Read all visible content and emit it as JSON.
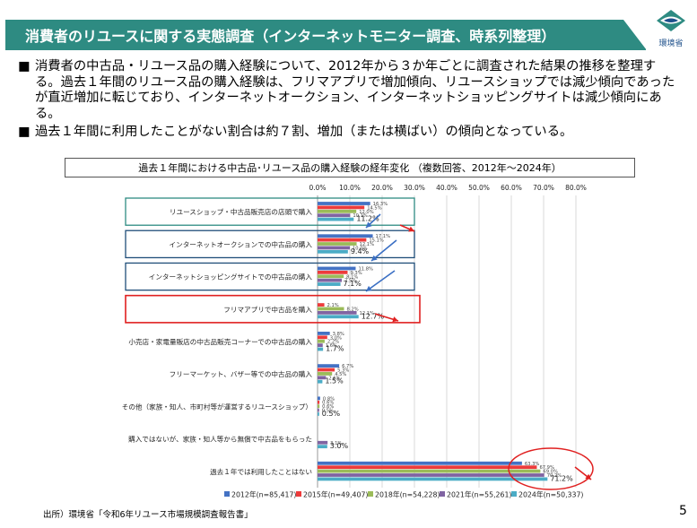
{
  "header": {
    "title": "消費者のリユースに関する実態調査（インターネットモニター調査、時系列整理）",
    "logo_label": "環境省"
  },
  "bullets": [
    {
      "mark": "■",
      "text": "消費者の中古品・リユース品の購入経験について、2012年から３か年ごとに調査された結果の推移を整理する。過去１年間のリユース品の購入経験は、フリマアプリで増加傾向、リユースショップでは減少傾向であったが直近増加に転じており、インターネットオークション、インターネットショッピングサイトは減少傾向にある。"
    },
    {
      "mark": "■",
      "text": "過去１年間に利用したことがない割合は約７割、増加（または横ばい）の傾向となっている。"
    }
  ],
  "chart_title": "過去１年間における中古品･リユース品の購入経験の経年変化 （複数回答、2012年～2024年）",
  "chart_data": {
    "type": "bar",
    "orientation": "horizontal",
    "xlim": [
      0,
      80
    ],
    "ticks": [
      "0.0%",
      "10.0%",
      "20.0%",
      "30.0%",
      "40.0%",
      "50.0%",
      "60.0%",
      "70.0%",
      "80.0%"
    ],
    "categories": [
      "リユースショップ・中古品販売店の店頭で購入",
      "インターネットオークションでの中古品の購入",
      "インターネットショッピングサイトでの中古品の購入",
      "フリマアプリで中古品を購入",
      "小売店・家電量販店の中古品販売コーナーでの中古品の購入",
      "フリーマーケット、バザー等での中古品の購入",
      "その他（家族・知人、市町村等が運営するリユースショップ）",
      "購入ではないが、家族・知人等から無償で中古品をもらった",
      "過去１年では利用したことはない"
    ],
    "series": [
      {
        "name": "2012年(n=85,417)",
        "color": "#4472c4",
        "values": [
          16.3,
          17.1,
          11.8,
          null,
          3.8,
          6.7,
          0.8,
          null,
          63.3
        ]
      },
      {
        "name": "2015年(n=49,407)",
        "color": "#ed3b3b",
        "values": [
          14.5,
          15.1,
          9.3,
          2.1,
          3.0,
          5.3,
          0.6,
          null,
          67.9
        ]
      },
      {
        "name": "2018年(n=54,228)",
        "color": "#9bbb59",
        "values": [
          12.0,
          12.1,
          8.1,
          8.2,
          2.2,
          4.5,
          0.6,
          null,
          69.0
        ]
      },
      {
        "name": "2021年(n=55,261)",
        "color": "#8064a2",
        "values": [
          10.1,
          10.0,
          7.5,
          12.1,
          1.6,
          2.6,
          0.5,
          3.1,
          70.2
        ]
      },
      {
        "name": "2024年(n=50,337)",
        "color": "#4bacc6",
        "values": [
          11.2,
          9.4,
          7.1,
          12.7,
          1.7,
          1.5,
          0.5,
          3.0,
          71.2
        ]
      }
    ],
    "last_value_labels": [
      "11.2%",
      "9.4%",
      "7.1%",
      "12.7%",
      "1.7%",
      "1.5%",
      "0.5%",
      "3.0%",
      "71.2%"
    ],
    "highlight_box_colors": [
      "#2e8b82",
      "#1f4e79",
      "#1f4e79",
      "#e02020"
    ],
    "legend_position": "bottom"
  },
  "footer": {
    "source": "出所）環境省「令和6年リユース市場規模調査報告書」",
    "page": "5"
  }
}
